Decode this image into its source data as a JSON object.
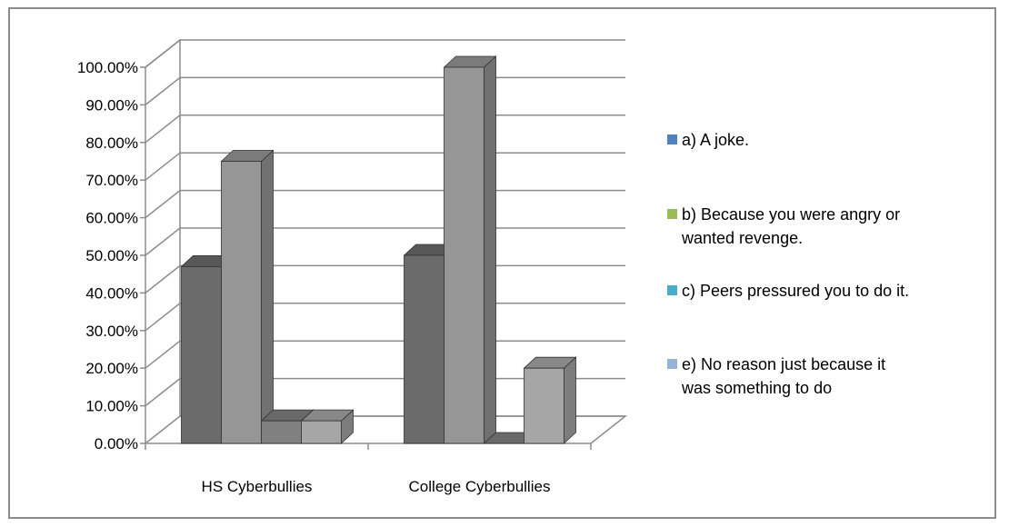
{
  "chart_data": {
    "type": "bar",
    "categories": [
      "HS Cyberbullies",
      "College Cyberbullies"
    ],
    "series": [
      {
        "name": "a) A joke.",
        "legend_color": "#4f81bd",
        "bar_color": "#6b6b6b",
        "values": [
          0.47,
          0.5
        ]
      },
      {
        "name": "b) Because you were angry or wanted revenge.",
        "legend_color": "#9bbb59",
        "bar_color": "#969696",
        "values": [
          0.75,
          1.0
        ]
      },
      {
        "name": "c) Peers pressured you to do it.",
        "legend_color": "#4bacc6",
        "bar_color": "#808080",
        "values": [
          0.06,
          0.0
        ]
      },
      {
        "name": "e) No reason just because it was something to do",
        "legend_color": "#95b3d7",
        "bar_color": "#a6a6a6",
        "values": [
          0.06,
          0.2
        ]
      }
    ],
    "ylim": [
      0,
      1
    ],
    "yticks": [
      "0.00%",
      "10.00%",
      "20.00%",
      "30.00%",
      "40.00%",
      "50.00%",
      "60.00%",
      "70.00%",
      "80.00%",
      "90.00%",
      "100.00%"
    ],
    "legend_lines": [
      [
        "a) A joke."
      ],
      [
        "b) Because you were angry or",
        "wanted revenge."
      ],
      [
        "c) Peers pressured you to do it."
      ],
      [
        "e) No reason just because it",
        "was something to do"
      ]
    ],
    "grid": true,
    "legend_position": "right",
    "three_d": true
  }
}
